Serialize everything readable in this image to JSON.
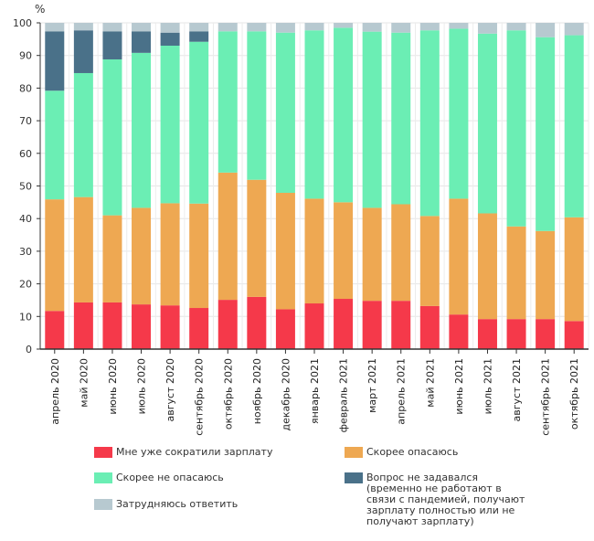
{
  "chart_data": {
    "type": "bar",
    "stacked": true,
    "title": "",
    "ylabel": "%",
    "xlabel": "",
    "ylim": [
      0,
      100
    ],
    "yticks": [
      0,
      10,
      20,
      30,
      40,
      50,
      60,
      70,
      80,
      90,
      100
    ],
    "grid": true,
    "legend_position": "bottom",
    "categories": [
      "апрель 2020",
      "май 2020",
      "июнь 2020",
      "июль 2020",
      "август 2020",
      "сентябрь 2020",
      "октябрь 2020",
      "ноябрь 2020",
      "декабрь 2020",
      "январь 2021",
      "февраль 2021",
      "март 2021",
      "апрель 2021",
      "май 2021",
      "июнь 2021",
      "июль 2021",
      "август 2021",
      "сентябрь 2021",
      "октябрь 2021"
    ],
    "series": [
      {
        "name": "Мне уже сократили зарплату",
        "color": "#f5394a",
        "values": [
          11.7,
          14.3,
          14.3,
          13.7,
          13.4,
          12.6,
          15.1,
          16.0,
          12.2,
          14.0,
          15.4,
          14.8,
          14.8,
          13.2,
          10.6,
          9.2,
          9.2,
          9.2,
          8.6
        ]
      },
      {
        "name": "Скорее опасаюсь",
        "color": "#eea852",
        "values": [
          34.2,
          32.3,
          26.7,
          29.6,
          31.3,
          32.0,
          39.0,
          35.9,
          35.7,
          32.1,
          29.6,
          28.5,
          29.6,
          27.6,
          35.5,
          32.4,
          28.4,
          27.0,
          31.8
        ]
      },
      {
        "name": "Скорее не опасаюсь",
        "color": "#6beeb4",
        "values": [
          33.3,
          38.0,
          47.8,
          47.5,
          48.3,
          49.6,
          43.3,
          45.5,
          49.1,
          51.6,
          53.5,
          54.0,
          52.6,
          56.9,
          52.1,
          55.1,
          60.1,
          59.4,
          55.8
        ]
      },
      {
        "name": "Вопрос не задавался (временно не работают в связи с пандемией, получают зарплату полностью или не получают зарплату)",
        "color": "#4a7189",
        "values": [
          18.2,
          13.1,
          8.6,
          6.6,
          4.0,
          3.2,
          0,
          0,
          0,
          0,
          0,
          0,
          0,
          0,
          0,
          0,
          0,
          0,
          0
        ]
      },
      {
        "name": "Затрудняюсь ответить",
        "color": "#b7c9d0",
        "values": [
          2.6,
          2.3,
          2.6,
          2.6,
          3.0,
          2.6,
          2.6,
          2.6,
          3.0,
          2.3,
          1.5,
          2.7,
          3.0,
          2.3,
          1.8,
          3.3,
          2.3,
          4.4,
          3.8
        ]
      }
    ]
  },
  "legend": [
    {
      "label": "Мне уже сократили зарплату",
      "color": "#f5394a"
    },
    {
      "label": "Скорее опасаюсь",
      "color": "#eea852"
    },
    {
      "label": "Скорее не опасаюсь",
      "color": "#6beeb4"
    },
    {
      "label": "Вопрос не задавался (временно не работают в связи с пандемией, получают зарплату полностью или не получают зарплату)",
      "color": "#4a7189"
    },
    {
      "label": "Затрудняюсь ответить",
      "color": "#b7c9d0"
    }
  ]
}
